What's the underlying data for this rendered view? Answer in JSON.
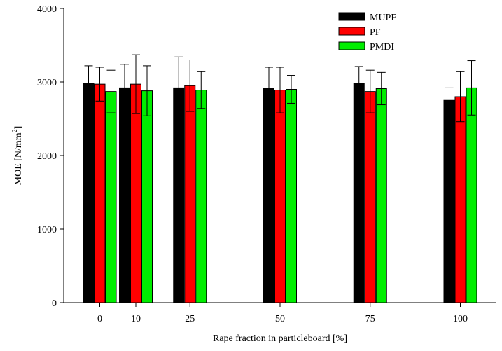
{
  "chart_data": {
    "type": "bar",
    "title": "",
    "xlabel": "Rape fraction in particleboard [%]",
    "ylabel": "MOE [N/mm2]",
    "ylabel_main": "MOE [N/mm",
    "ylabel_sup": "2",
    "ylabel_end": "]",
    "x_scale": "linear",
    "xlim": [
      -10,
      110
    ],
    "ylim": [
      0,
      4000
    ],
    "x_ticks": [
      0,
      10,
      25,
      50,
      75,
      100
    ],
    "x_tick_labels": [
      "0",
      "10",
      "25",
      "50",
      "75",
      "100"
    ],
    "y_ticks": [
      0,
      1000,
      2000,
      3000,
      4000
    ],
    "y_tick_labels": [
      "0",
      "1000",
      "2000",
      "3000",
      "4000"
    ],
    "grid": false,
    "legend_position": "top-right",
    "categories": [
      0,
      10,
      25,
      50,
      75,
      100
    ],
    "series": [
      {
        "name": "MUPF",
        "color": "#000000",
        "values": [
          2980,
          2920,
          2920,
          2910,
          2980,
          2750
        ],
        "error": [
          240,
          320,
          420,
          290,
          230,
          170
        ]
      },
      {
        "name": "PF",
        "color": "#ff0000",
        "values": [
          2970,
          2970,
          2950,
          2890,
          2870,
          2800
        ],
        "error": [
          230,
          400,
          350,
          310,
          290,
          340
        ]
      },
      {
        "name": "PMDI",
        "color": "#00ee00",
        "values": [
          2870,
          2880,
          2890,
          2900,
          2910,
          2920
        ],
        "error": [
          290,
          340,
          250,
          190,
          220,
          370
        ]
      }
    ]
  }
}
